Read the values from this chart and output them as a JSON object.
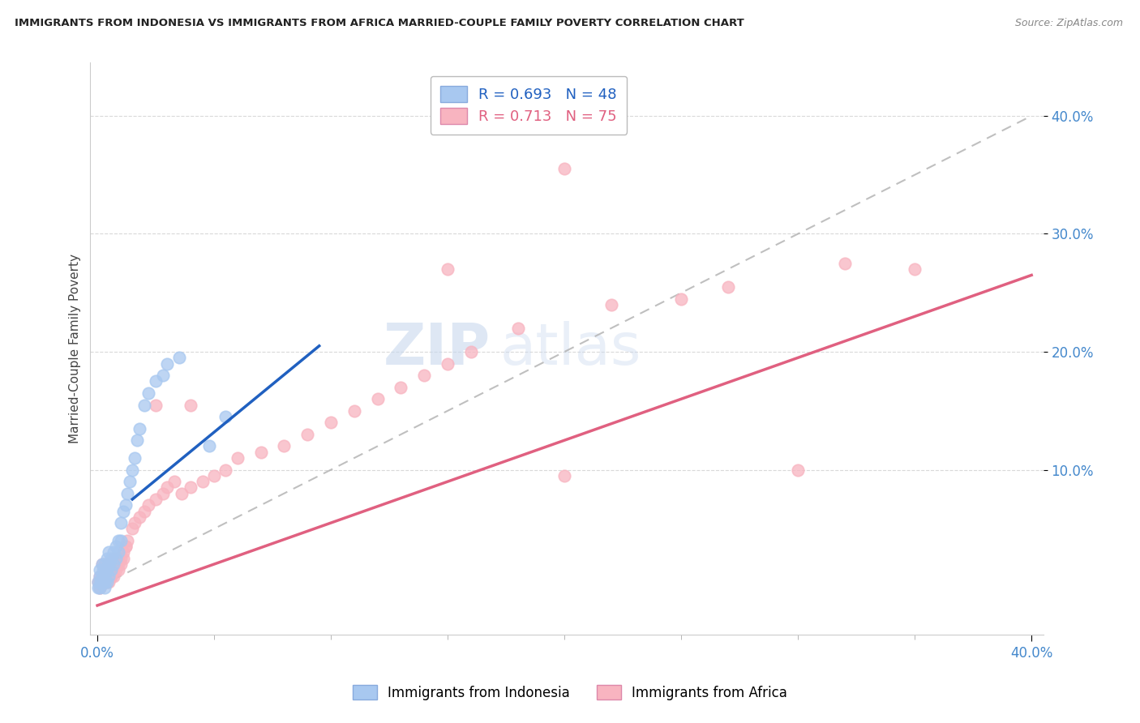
{
  "title": "IMMIGRANTS FROM INDONESIA VS IMMIGRANTS FROM AFRICA MARRIED-COUPLE FAMILY POVERTY CORRELATION CHART",
  "source": "Source: ZipAtlas.com",
  "ylabel": "Married-Couple Family Poverty",
  "xlim": [
    -0.003,
    0.405
  ],
  "ylim": [
    -0.04,
    0.445
  ],
  "ytick_values": [
    0.1,
    0.2,
    0.3,
    0.4
  ],
  "ytick_labels": [
    "10.0%",
    "20.0%",
    "30.0%",
    "40.0%"
  ],
  "xtick_values": [
    0.0,
    0.4
  ],
  "xtick_labels": [
    "0.0%",
    "40.0%"
  ],
  "legend1_label": "R = 0.693   N = 48",
  "legend2_label": "R = 0.713   N = 75",
  "legend_color1": "#a8c8f0",
  "legend_color2": "#f8b4c0",
  "watermark_zip": "ZIP",
  "watermark_atlas": "atlas",
  "indonesia_color": "#a8c8f0",
  "africa_color": "#f8b4c0",
  "indonesia_line_color": "#2060c0",
  "africa_line_color": "#e06080",
  "ref_line_color": "#b0b0b0",
  "background_color": "#ffffff",
  "grid_color": "#d0d0d0",
  "indonesia_line_x0": 0.015,
  "indonesia_line_x1": 0.095,
  "indonesia_line_y0": 0.075,
  "indonesia_line_y1": 0.205,
  "africa_line_x0": 0.0,
  "africa_line_x1": 0.4,
  "africa_line_y0": -0.015,
  "africa_line_y1": 0.265,
  "indonesia_x": [
    0.0005,
    0.001,
    0.001,
    0.0015,
    0.002,
    0.002,
    0.0025,
    0.003,
    0.003,
    0.003,
    0.004,
    0.004,
    0.004,
    0.005,
    0.005,
    0.005,
    0.006,
    0.006,
    0.007,
    0.007,
    0.008,
    0.008,
    0.009,
    0.009,
    0.01,
    0.01,
    0.011,
    0.012,
    0.013,
    0.014,
    0.015,
    0.016,
    0.017,
    0.018,
    0.02,
    0.022,
    0.025,
    0.028,
    0.03,
    0.035,
    0.0005,
    0.001,
    0.0015,
    0.002,
    0.003,
    0.003,
    0.048,
    0.055
  ],
  "indonesia_y": [
    0.005,
    0.01,
    0.015,
    0.005,
    0.01,
    0.02,
    0.015,
    0.005,
    0.01,
    0.02,
    0.005,
    0.015,
    0.025,
    0.01,
    0.02,
    0.03,
    0.015,
    0.025,
    0.02,
    0.03,
    0.025,
    0.035,
    0.03,
    0.04,
    0.04,
    0.055,
    0.065,
    0.07,
    0.08,
    0.09,
    0.1,
    0.11,
    0.125,
    0.135,
    0.155,
    0.165,
    0.175,
    0.18,
    0.19,
    0.195,
    0.0,
    0.0,
    0.005,
    0.005,
    0.0,
    0.005,
    0.12,
    0.145
  ],
  "africa_x": [
    0.0005,
    0.001,
    0.001,
    0.0015,
    0.002,
    0.002,
    0.003,
    0.003,
    0.004,
    0.004,
    0.005,
    0.005,
    0.006,
    0.006,
    0.007,
    0.007,
    0.008,
    0.008,
    0.009,
    0.009,
    0.01,
    0.011,
    0.012,
    0.013,
    0.015,
    0.016,
    0.018,
    0.02,
    0.022,
    0.025,
    0.028,
    0.03,
    0.033,
    0.036,
    0.04,
    0.045,
    0.05,
    0.055,
    0.06,
    0.07,
    0.08,
    0.09,
    0.1,
    0.11,
    0.12,
    0.13,
    0.14,
    0.15,
    0.16,
    0.18,
    0.2,
    0.22,
    0.25,
    0.27,
    0.3,
    0.32,
    0.35,
    0.001,
    0.002,
    0.003,
    0.004,
    0.005,
    0.006,
    0.007,
    0.008,
    0.009,
    0.01,
    0.011,
    0.012,
    0.025,
    0.04,
    0.15,
    0.2
  ],
  "africa_y": [
    0.005,
    0.0,
    0.01,
    0.005,
    0.01,
    0.02,
    0.005,
    0.015,
    0.01,
    0.02,
    0.005,
    0.015,
    0.01,
    0.02,
    0.01,
    0.025,
    0.015,
    0.025,
    0.015,
    0.025,
    0.02,
    0.03,
    0.035,
    0.04,
    0.05,
    0.055,
    0.06,
    0.065,
    0.07,
    0.075,
    0.08,
    0.085,
    0.09,
    0.08,
    0.085,
    0.09,
    0.095,
    0.1,
    0.11,
    0.115,
    0.12,
    0.13,
    0.14,
    0.15,
    0.16,
    0.17,
    0.18,
    0.19,
    0.2,
    0.22,
    0.095,
    0.24,
    0.245,
    0.255,
    0.1,
    0.275,
    0.27,
    0.0,
    0.005,
    0.005,
    0.005,
    0.01,
    0.01,
    0.015,
    0.02,
    0.02,
    0.025,
    0.025,
    0.035,
    0.155,
    0.155,
    0.27,
    0.355
  ]
}
